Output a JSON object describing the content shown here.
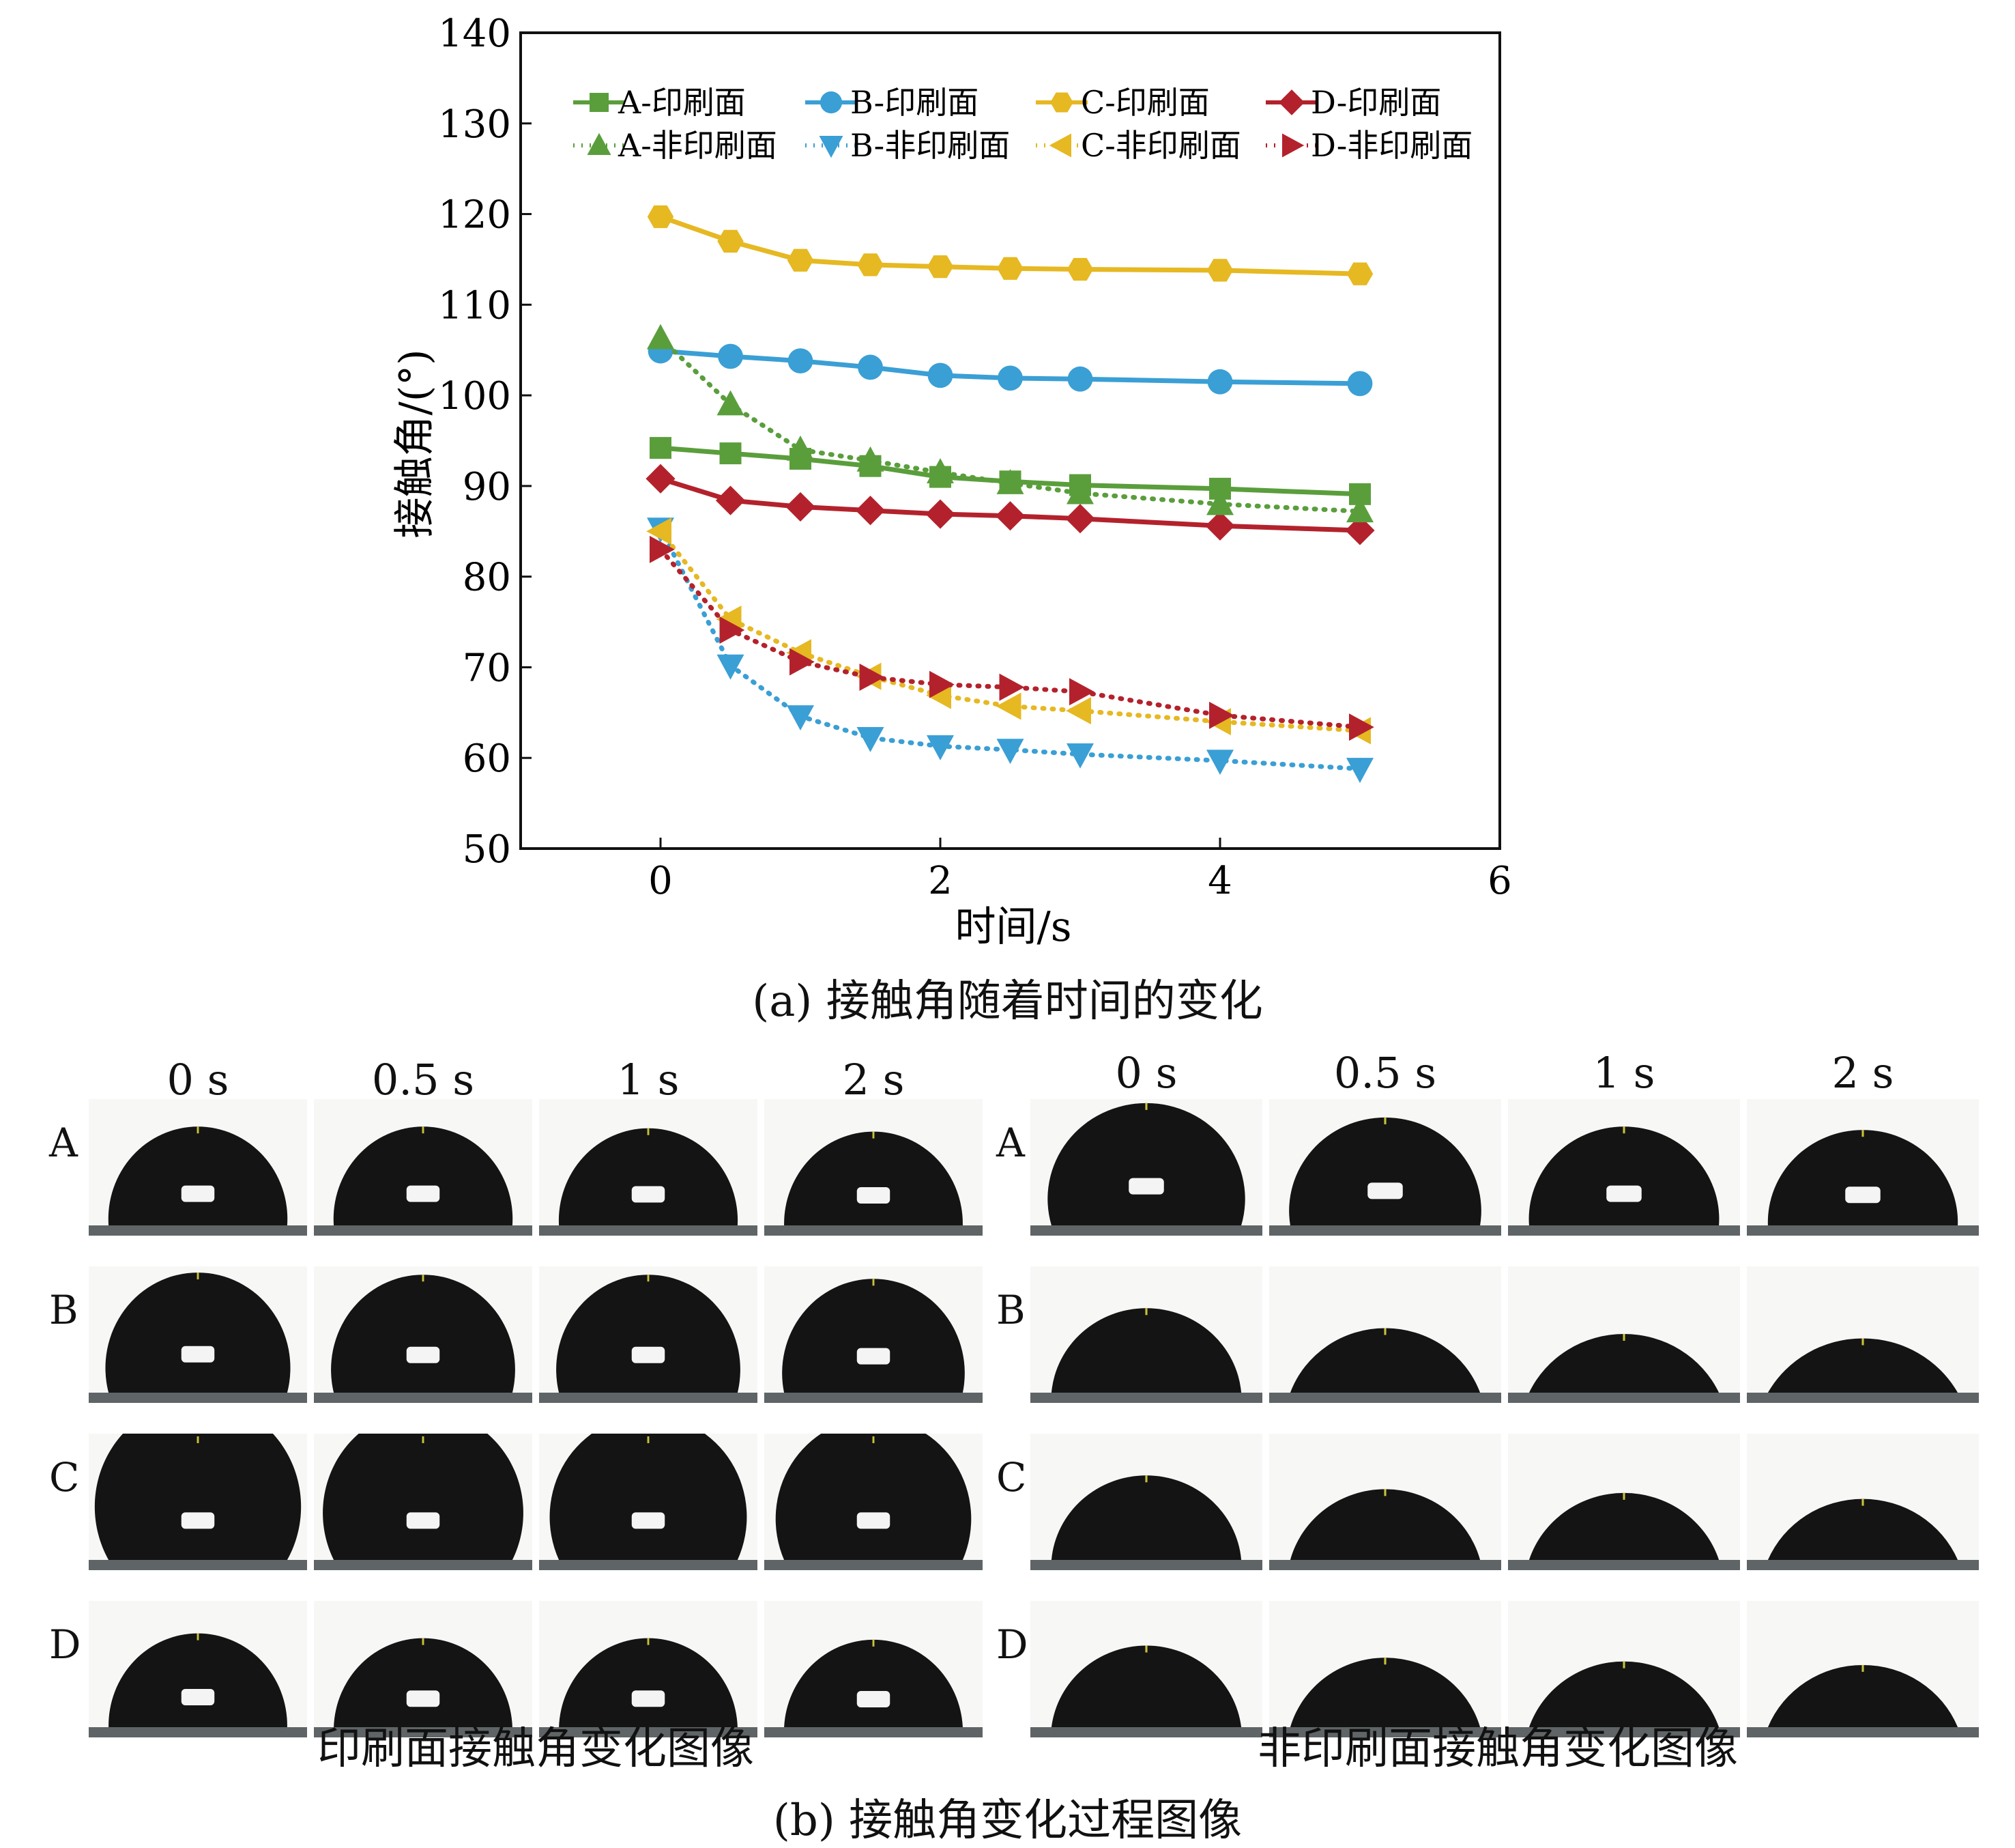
{
  "chart_data": {
    "type": "line",
    "xlabel": "时间/s",
    "ylabel": "接触角/(°)",
    "xlim": [
      -1,
      6
    ],
    "ylim": [
      50,
      140
    ],
    "xticks": [
      0,
      2,
      4,
      6
    ],
    "yticks": [
      50,
      60,
      70,
      80,
      90,
      100,
      110,
      120,
      130,
      140
    ],
    "legend_placement": "top",
    "x": [
      0,
      0.5,
      1,
      1.5,
      2,
      2.5,
      3,
      4,
      5
    ],
    "series": [
      {
        "name": "A-印刷面",
        "values": [
          94.2,
          93.6,
          93.0,
          92.2,
          91.0,
          90.5,
          90.1,
          89.7,
          89.1
        ],
        "color": "#5a9e3c",
        "marker": "square",
        "dash": false
      },
      {
        "name": "B-印刷面",
        "values": [
          104.9,
          104.3,
          103.8,
          103.1,
          102.2,
          101.9,
          101.8,
          101.5,
          101.3
        ],
        "color": "#3a9fd5",
        "marker": "circle",
        "dash": false
      },
      {
        "name": "C-印刷面",
        "values": [
          119.7,
          117.0,
          114.9,
          114.4,
          114.2,
          114.0,
          113.9,
          113.8,
          113.4
        ],
        "color": "#e6b822",
        "marker": "hexagon",
        "dash": false
      },
      {
        "name": "D-印刷面",
        "values": [
          90.8,
          88.4,
          87.7,
          87.3,
          86.9,
          86.7,
          86.4,
          85.6,
          85.1
        ],
        "color": "#b3222c",
        "marker": "diamond",
        "dash": false
      },
      {
        "name": "A-非印刷面",
        "values": [
          106.3,
          99.0,
          94.0,
          92.8,
          91.5,
          90.3,
          89.2,
          88.0,
          87.2
        ],
        "color": "#5a9e3c",
        "marker": "triangle-up",
        "dash": true
      },
      {
        "name": "B-非印刷面",
        "values": [
          85.3,
          70.2,
          64.6,
          62.2,
          61.3,
          60.9,
          60.4,
          59.7,
          58.8
        ],
        "color": "#3a9fd5",
        "marker": "triangle-down",
        "dash": true
      },
      {
        "name": "C-非印刷面",
        "values": [
          85.0,
          75.3,
          71.6,
          69.0,
          66.9,
          65.7,
          65.2,
          64.0,
          63.0
        ],
        "color": "#e6b822",
        "marker": "triangle-left",
        "dash": true
      },
      {
        "name": "D-非印刷面",
        "values": [
          83.0,
          74.1,
          70.6,
          68.9,
          68.1,
          67.8,
          67.3,
          64.7,
          63.4
        ],
        "color": "#b3222c",
        "marker": "triangle-right",
        "dash": true
      }
    ]
  },
  "captions": {
    "a": "(a) 接触角随着时间的变化",
    "b": "(b) 接触角变化过程图像"
  },
  "image_grid": {
    "printed": {
      "title": "印刷面接触角变化图像",
      "columns": [
        "0 s",
        "0.5 s",
        "1 s",
        "2 s"
      ],
      "rows": [
        "A",
        "B",
        "C",
        "D"
      ],
      "drop_angles": [
        [
          94,
          94,
          93,
          91
        ],
        [
          105,
          104,
          104,
          102
        ],
        [
          120,
          117,
          115,
          114
        ],
        [
          91,
          88,
          88,
          87
        ]
      ]
    },
    "non_printed": {
      "title": "非印刷面接触角变化图像",
      "columns": [
        "0 s",
        "0.5 s",
        "1 s",
        "2 s"
      ],
      "rows": [
        "A",
        "B",
        "C",
        "D"
      ],
      "drop_angles": [
        [
          106,
          99,
          94,
          92
        ],
        [
          85,
          70,
          65,
          61
        ],
        [
          85,
          75,
          72,
          67
        ],
        [
          83,
          74,
          71,
          68
        ]
      ]
    }
  }
}
